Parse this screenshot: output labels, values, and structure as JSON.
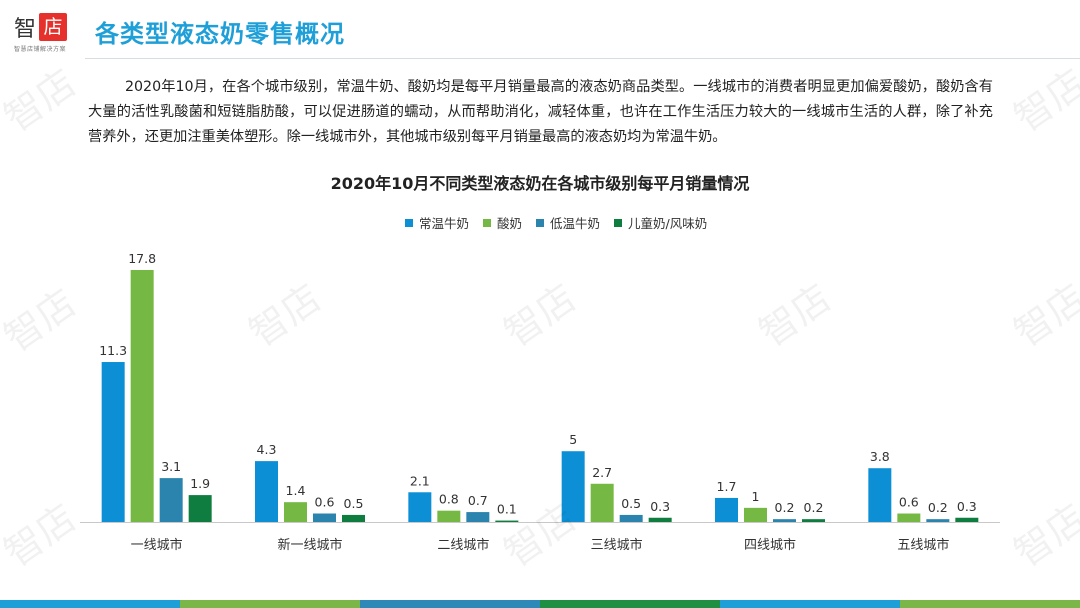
{
  "logo": {
    "main": "智",
    "box": "店",
    "sub": "智慧店铺解决方案"
  },
  "page_title": "各类型液态奶零售概况",
  "paragraph": "2020年10月，在各个城市级别，常温牛奶、酸奶均是每平月销量最高的液态奶商品类型。一线城市的消费者明显更加偏爱酸奶，酸奶含有大量的活性乳酸菌和短链脂肪酸，可以促进肠道的蠕动，从而帮助消化，减轻体重，也许在工作生活压力较大的一线城市生活的人群，除了补充营养外，还更加注重美体塑形。除一线城市外，其他城市级别每平月销量最高的液态奶均为常温牛奶。",
  "watermark": "智店",
  "colors": {
    "title": "#1e9fd8",
    "footer": [
      "#1e9fd8",
      "#7ab648",
      "#2e88b8",
      "#1f8f44",
      "#1e9fd8",
      "#7ab648"
    ]
  },
  "chart_data": {
    "type": "bar",
    "title": "2020年10月不同类型液态奶在各城市级别每平月销量情况",
    "categories": [
      "一线城市",
      "新一线城市",
      "二线城市",
      "三线城市",
      "四线城市",
      "五线城市"
    ],
    "series": [
      {
        "name": "常温牛奶",
        "color": "#0d8fd6",
        "values": [
          11.3,
          4.3,
          2.1,
          5,
          1.7,
          3.8
        ]
      },
      {
        "name": "酸奶",
        "color": "#76b844",
        "values": [
          17.8,
          1.4,
          0.8,
          2.7,
          1,
          0.6
        ]
      },
      {
        "name": "低温牛奶",
        "color": "#2a84ae",
        "values": [
          3.1,
          0.6,
          0.7,
          0.5,
          0.2,
          0.2
        ]
      },
      {
        "name": "儿童奶/风味奶",
        "color": "#0f7d40",
        "values": [
          1.9,
          0.5,
          0.1,
          0.3,
          0.2,
          0.3
        ]
      }
    ],
    "labels": [
      [
        "11.3",
        "4.3",
        "2.1",
        "5",
        "1.7",
        "3.8"
      ],
      [
        "17.8",
        "1.4",
        "0.8",
        "2.7",
        "1",
        "0.6"
      ],
      [
        "3.1",
        "0.6",
        "0.7",
        "0.5",
        "0.2",
        "0.2"
      ],
      [
        "1.9",
        "0.5",
        "0.1",
        "0.3",
        "0.2",
        "0.3"
      ]
    ],
    "ylim": [
      0,
      17.8
    ],
    "grid": false,
    "legend_position": "top"
  }
}
